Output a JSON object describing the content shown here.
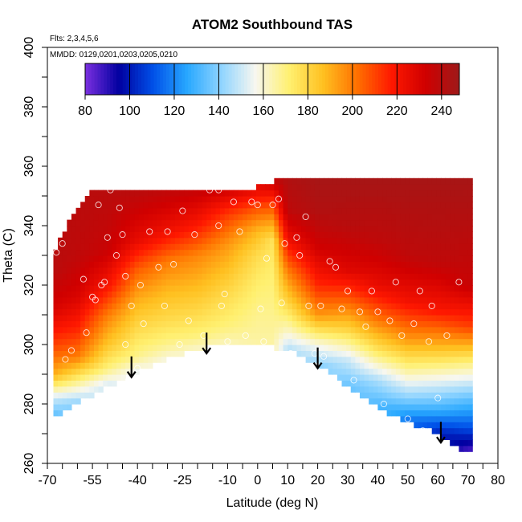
{
  "chart_data": {
    "type": "heatmap",
    "title": "ATOM2 Southbound TAS",
    "annotations": [
      "Flts: 2,3,4,5,6",
      "MMDD: 0129,0201,0203,0205,0210"
    ],
    "xlabel": "Latitude (deg N)",
    "ylabel": "Theta (C)",
    "xlim": [
      -70,
      80
    ],
    "ylim": [
      260,
      400
    ],
    "x_ticks": [
      -70,
      -55,
      -40,
      -25,
      -10,
      0,
      10,
      20,
      30,
      40,
      50,
      60,
      70,
      80
    ],
    "x_tick_labels": [
      "-70",
      "-55",
      "-40",
      "-25",
      "-10",
      "0",
      "10",
      "20",
      "30",
      "40",
      "50",
      "60",
      "70",
      "80"
    ],
    "y_ticks": [
      260,
      280,
      300,
      320,
      340,
      360,
      380,
      400
    ],
    "y_tick_labels": [
      "260",
      "280",
      "300",
      "320",
      "340",
      "360",
      "380",
      "400"
    ],
    "colorbar": {
      "range": [
        80,
        248
      ],
      "tick_values": [
        80,
        100,
        120,
        140,
        160,
        180,
        200,
        220,
        240
      ],
      "tick_labels": [
        "80",
        "100",
        "120",
        "140",
        "160",
        "180",
        "200",
        "220",
        "240"
      ],
      "colors": [
        "#7b2fe0",
        "#0000a0",
        "#0050e8",
        "#28a8ff",
        "#8fd4ff",
        "#f7f7f0",
        "#fff070",
        "#ffc020",
        "#ff7000",
        "#ff1800",
        "#d00000",
        "#9e1a1a"
      ]
    },
    "surface_theta": [
      [
        -68,
        275
      ],
      [
        -60,
        280
      ],
      [
        -55,
        283
      ],
      [
        -50,
        286
      ],
      [
        -45,
        288
      ],
      [
        -40,
        291
      ],
      [
        -35,
        293
      ],
      [
        -30,
        295
      ],
      [
        -25,
        297
      ],
      [
        -20,
        298
      ],
      [
        -15,
        299.5
      ],
      [
        -10,
        300.5
      ],
      [
        -5,
        300
      ],
      [
        0,
        299.5
      ],
      [
        5,
        299
      ],
      [
        10,
        298
      ],
      [
        15,
        296
      ],
      [
        20,
        293
      ],
      [
        25,
        290
      ],
      [
        30,
        286
      ],
      [
        35,
        282
      ],
      [
        40,
        279
      ],
      [
        45,
        276
      ],
      [
        50,
        274
      ],
      [
        55,
        272
      ],
      [
        60,
        270
      ],
      [
        65,
        266
      ],
      [
        70,
        264
      ]
    ],
    "top_theta": [
      [
        -68,
        330
      ],
      [
        -65,
        336
      ],
      [
        -62,
        342
      ],
      [
        -58,
        347
      ],
      [
        -55,
        351
      ],
      [
        -50,
        352
      ],
      [
        0,
        352
      ],
      [
        8,
        355
      ],
      [
        60,
        355
      ],
      [
        70,
        355
      ]
    ],
    "field_columns": [
      {
        "lat": -68,
        "levels": [
          [
            275,
            130
          ],
          [
            282,
            150
          ],
          [
            290,
            190
          ],
          [
            300,
            210
          ],
          [
            312,
            230
          ],
          [
            325,
            240
          ],
          [
            335,
            240
          ]
        ]
      },
      {
        "lat": -60,
        "levels": [
          [
            280,
            140
          ],
          [
            288,
            170
          ],
          [
            296,
            200
          ],
          [
            305,
            215
          ],
          [
            316,
            230
          ],
          [
            330,
            238
          ],
          [
            352,
            240
          ]
        ]
      },
      {
        "lat": -50,
        "levels": [
          [
            286,
            150
          ],
          [
            292,
            170
          ],
          [
            300,
            185
          ],
          [
            310,
            200
          ],
          [
            320,
            220
          ],
          [
            332,
            235
          ],
          [
            352,
            240
          ]
        ]
      },
      {
        "lat": -40,
        "levels": [
          [
            291,
            155
          ],
          [
            296,
            168
          ],
          [
            305,
            178
          ],
          [
            315,
            190
          ],
          [
            325,
            205
          ],
          [
            335,
            225
          ],
          [
            352,
            240
          ]
        ]
      },
      {
        "lat": -30,
        "levels": [
          [
            295,
            158
          ],
          [
            300,
            168
          ],
          [
            308,
            178
          ],
          [
            318,
            188
          ],
          [
            328,
            200
          ],
          [
            338,
            222
          ],
          [
            352,
            238
          ]
        ]
      },
      {
        "lat": -20,
        "levels": [
          [
            298,
            160
          ],
          [
            303,
            170
          ],
          [
            310,
            178
          ],
          [
            320,
            188
          ],
          [
            330,
            198
          ],
          [
            340,
            218
          ],
          [
            352,
            236
          ]
        ]
      },
      {
        "lat": -10,
        "levels": [
          [
            300,
            162
          ],
          [
            306,
            170
          ],
          [
            314,
            176
          ],
          [
            324,
            185
          ],
          [
            334,
            195
          ],
          [
            344,
            212
          ],
          [
            352,
            232
          ]
        ]
      },
      {
        "lat": 0,
        "levels": [
          [
            299.5,
            165
          ],
          [
            310,
            168
          ],
          [
            320,
            172
          ],
          [
            330,
            178
          ],
          [
            338,
            188
          ],
          [
            345,
            205
          ],
          [
            352,
            225
          ]
        ]
      },
      {
        "lat": 5,
        "levels": [
          [
            299,
            165
          ],
          [
            310,
            168
          ],
          [
            325,
            172
          ],
          [
            335,
            176
          ],
          [
            342,
            195
          ],
          [
            348,
            212
          ],
          [
            355,
            235
          ]
        ]
      },
      {
        "lat": 10,
        "levels": [
          [
            298,
            145
          ],
          [
            305,
            162
          ],
          [
            315,
            182
          ],
          [
            325,
            200
          ],
          [
            335,
            222
          ],
          [
            345,
            238
          ],
          [
            355,
            242
          ]
        ]
      },
      {
        "lat": 20,
        "levels": [
          [
            293,
            140
          ],
          [
            300,
            158
          ],
          [
            310,
            195
          ],
          [
            320,
            215
          ],
          [
            332,
            232
          ],
          [
            345,
            242
          ],
          [
            355,
            245
          ]
        ]
      },
      {
        "lat": 30,
        "levels": [
          [
            286,
            135
          ],
          [
            295,
            150
          ],
          [
            305,
            180
          ],
          [
            315,
            205
          ],
          [
            325,
            228
          ],
          [
            340,
            240
          ],
          [
            355,
            245
          ]
        ]
      },
      {
        "lat": 40,
        "levels": [
          [
            279,
            130
          ],
          [
            288,
            145
          ],
          [
            298,
            175
          ],
          [
            308,
            200
          ],
          [
            320,
            225
          ],
          [
            335,
            238
          ],
          [
            355,
            245
          ]
        ]
      },
      {
        "lat": 50,
        "levels": [
          [
            274,
            115
          ],
          [
            282,
            140
          ],
          [
            292,
            168
          ],
          [
            302,
            195
          ],
          [
            315,
            222
          ],
          [
            330,
            238
          ],
          [
            355,
            245
          ]
        ]
      },
      {
        "lat": 60,
        "levels": [
          [
            270,
            100
          ],
          [
            278,
            128
          ],
          [
            288,
            155
          ],
          [
            300,
            190
          ],
          [
            312,
            220
          ],
          [
            328,
            238
          ],
          [
            355,
            245
          ]
        ]
      },
      {
        "lat": 70,
        "levels": [
          [
            264,
            85
          ],
          [
            272,
            110
          ],
          [
            282,
            135
          ],
          [
            294,
            170
          ],
          [
            306,
            210
          ],
          [
            320,
            235
          ],
          [
            355,
            245
          ]
        ]
      }
    ],
    "sample_points": [
      [
        -67,
        331
      ],
      [
        -65,
        334
      ],
      [
        -64,
        295
      ],
      [
        -62,
        298
      ],
      [
        -58,
        322
      ],
      [
        -57,
        304
      ],
      [
        -55,
        316
      ],
      [
        -54,
        315
      ],
      [
        -53,
        347
      ],
      [
        -52,
        320
      ],
      [
        -51,
        321
      ],
      [
        -50,
        336
      ],
      [
        -49,
        352
      ],
      [
        -47,
        330
      ],
      [
        -46,
        346
      ],
      [
        -45,
        337
      ],
      [
        -44,
        323
      ],
      [
        -44,
        300
      ],
      [
        -43,
        288
      ],
      [
        -42,
        313
      ],
      [
        -40,
        292
      ],
      [
        -39,
        320
      ],
      [
        -38,
        307
      ],
      [
        -36,
        338
      ],
      [
        -33,
        326
      ],
      [
        -31,
        313
      ],
      [
        -30,
        338
      ],
      [
        -28,
        327
      ],
      [
        -26,
        300
      ],
      [
        -25,
        345
      ],
      [
        -23,
        308
      ],
      [
        -21,
        337
      ],
      [
        -18,
        303
      ],
      [
        -16,
        352
      ],
      [
        -13,
        352
      ],
      [
        -13,
        340
      ],
      [
        -12,
        313
      ],
      [
        -11,
        317
      ],
      [
        -10,
        301
      ],
      [
        -8,
        348
      ],
      [
        -6,
        338
      ],
      [
        -4,
        303
      ],
      [
        -2,
        348
      ],
      [
        0,
        347
      ],
      [
        1,
        312
      ],
      [
        2,
        301
      ],
      [
        3,
        329
      ],
      [
        5,
        347
      ],
      [
        7,
        349
      ],
      [
        8,
        314
      ],
      [
        9,
        334
      ],
      [
        11,
        297
      ],
      [
        13,
        336
      ],
      [
        14,
        330
      ],
      [
        16,
        343
      ],
      [
        17,
        313
      ],
      [
        19,
        297
      ],
      [
        21,
        313
      ],
      [
        22,
        296
      ],
      [
        24,
        328
      ],
      [
        26,
        326
      ],
      [
        28,
        312
      ],
      [
        30,
        318
      ],
      [
        32,
        288
      ],
      [
        34,
        311
      ],
      [
        36,
        306
      ],
      [
        38,
        318
      ],
      [
        40,
        311
      ],
      [
        42,
        280
      ],
      [
        44,
        308
      ],
      [
        46,
        321
      ],
      [
        48,
        303
      ],
      [
        50,
        275
      ],
      [
        52,
        307
      ],
      [
        54,
        318
      ],
      [
        55,
        271
      ],
      [
        57,
        301
      ],
      [
        58,
        313
      ],
      [
        60,
        282
      ],
      [
        63,
        303
      ],
      [
        67,
        321
      ]
    ],
    "arrows": [
      {
        "lat": -42,
        "theta_top": 296,
        "theta_bottom": 289
      },
      {
        "lat": -17,
        "theta_top": 304,
        "theta_bottom": 297
      },
      {
        "lat": 20,
        "theta_top": 299,
        "theta_bottom": 292
      },
      {
        "lat": 61,
        "theta_top": 274,
        "theta_bottom": 267
      }
    ],
    "grid": false,
    "legend": "colorbar-top"
  }
}
